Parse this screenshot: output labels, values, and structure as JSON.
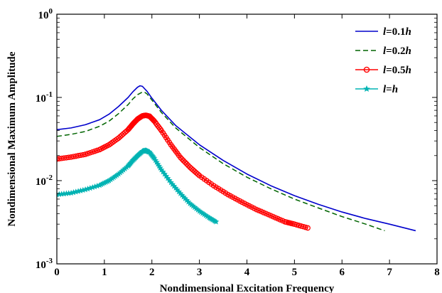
{
  "chart_data": {
    "type": "line",
    "xlabel": "Nondimensional Excitation Frequency",
    "ylabel": "Nondimensional Maximum Amplitude",
    "xlim": [
      0,
      8
    ],
    "ylim": [
      0.001,
      1
    ],
    "yscale": "log",
    "grid": false,
    "legend_position": "top-right",
    "x_ticks": [
      "0",
      "1",
      "2",
      "3",
      "4",
      "5",
      "6",
      "7",
      "8"
    ],
    "y_ticks": [
      {
        "base": "10",
        "exp": "-3"
      },
      {
        "base": "10",
        "exp": "-2"
      },
      {
        "base": "10",
        "exp": "-1"
      },
      {
        "base": "10",
        "exp": "0"
      }
    ],
    "series": [
      {
        "name": "l=0.1h",
        "label_parts": [
          "l",
          "=0.1",
          "h"
        ],
        "color": "#0000cc",
        "style": "solid",
        "marker": "none",
        "x": [
          0,
          0.3,
          0.6,
          0.9,
          1.1,
          1.3,
          1.5,
          1.6,
          1.7,
          1.75,
          1.8,
          1.9,
          2.0,
          2.2,
          2.5,
          3.0,
          3.5,
          4.0,
          4.5,
          5.0,
          5.5,
          6.0,
          6.5,
          7.0,
          7.55
        ],
        "y": [
          0.041,
          0.043,
          0.047,
          0.054,
          0.063,
          0.078,
          0.1,
          0.117,
          0.133,
          0.138,
          0.136,
          0.118,
          0.098,
          0.07,
          0.046,
          0.027,
          0.0175,
          0.012,
          0.0087,
          0.0066,
          0.0052,
          0.0042,
          0.0035,
          0.003,
          0.0025
        ]
      },
      {
        "name": "l=0.2h",
        "label_parts": [
          "l",
          "=0.2",
          "h"
        ],
        "color": "#006400",
        "style": "dashed",
        "marker": "none",
        "x": [
          0,
          0.3,
          0.6,
          0.9,
          1.1,
          1.3,
          1.5,
          1.6,
          1.7,
          1.8,
          1.85,
          1.9,
          2.0,
          2.2,
          2.5,
          3.0,
          3.5,
          4.0,
          4.5,
          5.0,
          5.5,
          6.0,
          6.5,
          6.9
        ],
        "y": [
          0.034,
          0.036,
          0.039,
          0.045,
          0.052,
          0.064,
          0.082,
          0.096,
          0.108,
          0.116,
          0.115,
          0.11,
          0.093,
          0.066,
          0.043,
          0.025,
          0.016,
          0.011,
          0.008,
          0.006,
          0.0047,
          0.0037,
          0.003,
          0.0025
        ]
      },
      {
        "name": "l=0.5h",
        "label_parts": [
          "l",
          "=0.5",
          "h"
        ],
        "color": "#ff0000",
        "style": "solid",
        "marker": "circle",
        "x": [
          0,
          0.3,
          0.6,
          0.9,
          1.1,
          1.3,
          1.5,
          1.6,
          1.7,
          1.8,
          1.87,
          1.95,
          2.05,
          2.2,
          2.4,
          2.6,
          2.8,
          3.0,
          3.3,
          3.6,
          3.9,
          4.2,
          4.5,
          4.8,
          5.0,
          5.28
        ],
        "y": [
          0.0182,
          0.0192,
          0.0207,
          0.0236,
          0.027,
          0.0325,
          0.041,
          0.048,
          0.055,
          0.06,
          0.061,
          0.0595,
          0.052,
          0.04,
          0.027,
          0.019,
          0.0145,
          0.0115,
          0.0087,
          0.0068,
          0.0055,
          0.0045,
          0.0038,
          0.0032,
          0.003,
          0.0027
        ]
      },
      {
        "name": "l=h",
        "label_parts": [
          "l",
          "=",
          "h"
        ],
        "color": "#00b3b3",
        "style": "solid",
        "marker": "star",
        "x": [
          0,
          0.3,
          0.6,
          0.9,
          1.1,
          1.3,
          1.5,
          1.6,
          1.7,
          1.8,
          1.87,
          1.95,
          2.05,
          2.2,
          2.4,
          2.6,
          2.8,
          3.0,
          3.2,
          3.35
        ],
        "y": [
          0.0068,
          0.0071,
          0.0078,
          0.0088,
          0.01,
          0.012,
          0.015,
          0.0175,
          0.02,
          0.0225,
          0.023,
          0.022,
          0.0185,
          0.0135,
          0.0095,
          0.007,
          0.0053,
          0.0043,
          0.0036,
          0.0032
        ]
      }
    ]
  }
}
